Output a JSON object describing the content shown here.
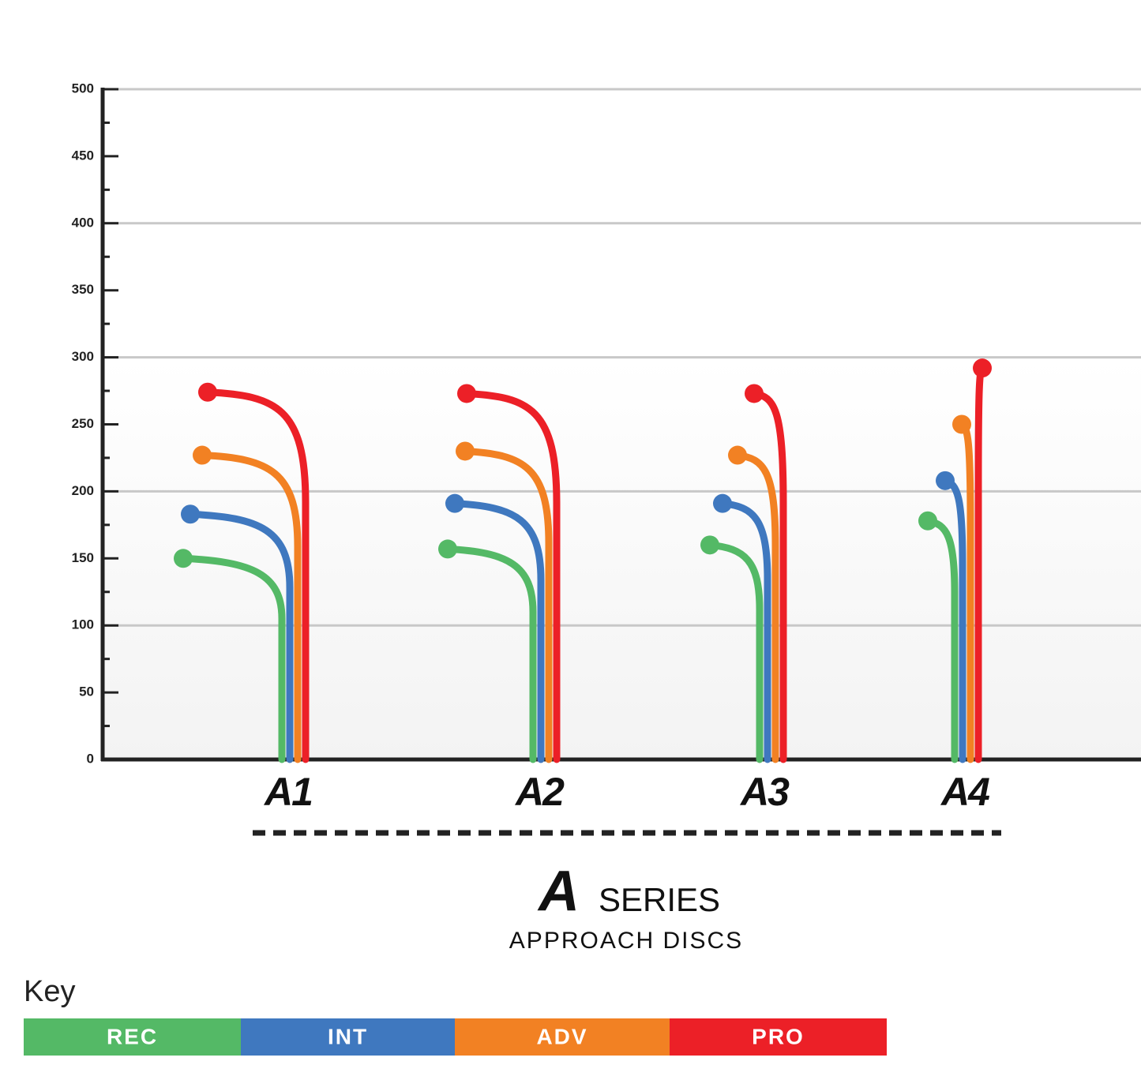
{
  "chart_data": {
    "type": "flight",
    "logo_letter": "A",
    "title": "SERIES",
    "subtitle": "APPROACH DISCS",
    "legend_title": "Key",
    "categories": [
      "A1",
      "A2",
      "A3",
      "A4"
    ],
    "series": [
      {
        "name": "REC",
        "color": "#54b966",
        "values": [
          150,
          157,
          160,
          178
        ]
      },
      {
        "name": "INT",
        "color": "#3f78bf",
        "values": [
          183,
          191,
          191,
          208
        ]
      },
      {
        "name": "ADV",
        "color": "#f28123",
        "values": [
          227,
          230,
          227,
          250
        ]
      },
      {
        "name": "PRO",
        "color": "#ec2027",
        "values": [
          274,
          273,
          273,
          292
        ]
      }
    ],
    "ylim": [
      0,
      500
    ],
    "yticks": [
      0,
      50,
      100,
      150,
      200,
      250,
      300,
      350,
      400,
      450,
      500
    ],
    "gridlines": [
      100,
      200,
      300,
      400,
      500
    ]
  }
}
